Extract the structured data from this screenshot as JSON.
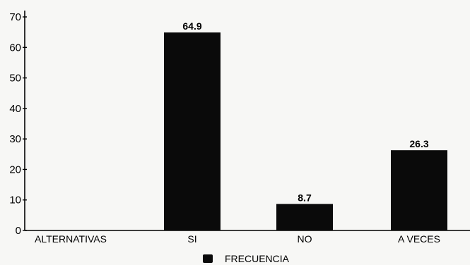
{
  "chart_data": {
    "type": "bar",
    "categories": [
      "ALTERNATIVAS",
      "SI",
      "NO",
      "A VECES"
    ],
    "series": [
      {
        "name": "FRECUENCIA",
        "values": [
          null,
          64.9,
          8.7,
          26.3
        ]
      }
    ],
    "value_labels": [
      "",
      "64.9",
      "8.7",
      "26.3"
    ],
    "ylim": [
      0,
      70
    ],
    "yticks": [
      0,
      10,
      20,
      30,
      40,
      50,
      60,
      70
    ],
    "title": "",
    "xlabel": "",
    "ylabel": "",
    "grid": false,
    "legend_position": "bottom-center",
    "colors": {
      "bar": "#0a0a0a",
      "axis": "#000000",
      "background": "#f7f7f5"
    }
  }
}
